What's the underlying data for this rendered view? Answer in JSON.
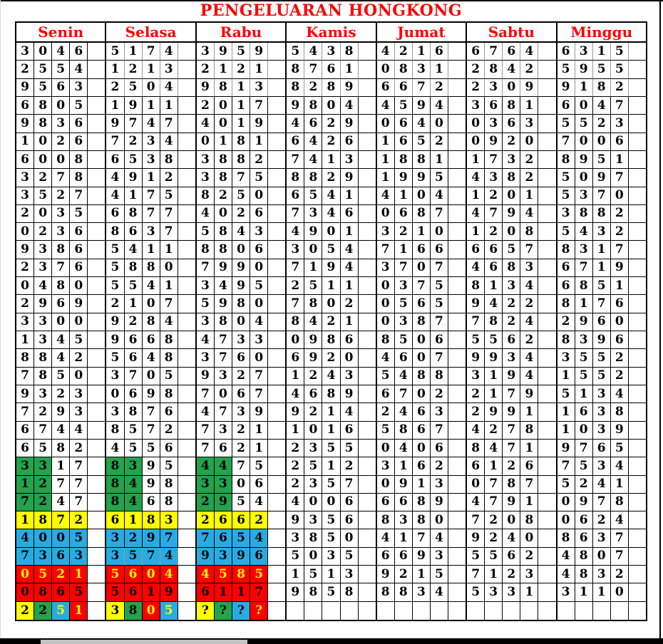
{
  "title": "PENGELUARAN HONGKONG",
  "colors": {
    "title_red": "#FF0000",
    "header_red": "#FF0000",
    "green": "#22A34C",
    "yellow": "#FFFF00",
    "blue": "#29ABE2",
    "red": "#FE0000",
    "gray_border": "#989898"
  },
  "days": [
    {
      "label": "Senin",
      "rows": [
        "3046",
        "2554",
        "9563",
        "6805",
        "9836",
        "1026",
        "6008",
        "3278",
        "3527",
        "2035",
        "0236",
        "9386",
        "2376",
        "0480",
        "2969",
        "3300",
        "1345",
        "8842",
        "7850",
        "9323",
        "7293",
        "6744",
        "6582",
        {
          "d": "3317",
          "bg": "GGWW"
        },
        {
          "d": "1277",
          "bg": "GGWW"
        },
        {
          "d": "7247",
          "bg": "GGWW"
        },
        {
          "d": "1872",
          "bg": "YYYY"
        },
        {
          "d": "4005",
          "bg": "BBBB"
        },
        {
          "d": "7363",
          "bg": "BBBB"
        },
        {
          "d": "0521",
          "bg": "RRRR",
          "fg": "YYYY"
        },
        {
          "d": "0865",
          "bg": "RRRR",
          "fg": "KKKK"
        },
        {
          "d": "2251",
          "bg": "YGBR",
          "fg": "KKYY"
        }
      ]
    },
    {
      "label": "Selasa",
      "rows": [
        {
          "d": "5174",
          "gb": true
        },
        {
          "d": "1213",
          "gb": true
        },
        {
          "d": "2504",
          "gb": true
        },
        "1911",
        "9747",
        "7234",
        "6538",
        "4912",
        "4175",
        "6877",
        "8637",
        "5411",
        "5880",
        "5541",
        "2107",
        "9284",
        "9668",
        "5648",
        "3705",
        "0698",
        "3876",
        "8572",
        "4556",
        {
          "d": "8395",
          "bg": "GGWW"
        },
        {
          "d": "8498",
          "bg": "GGWW"
        },
        {
          "d": "8468",
          "bg": "GGWW"
        },
        {
          "d": "6183",
          "bg": "YYYY"
        },
        {
          "d": "3297",
          "bg": "BBBB"
        },
        {
          "d": "3574",
          "bg": "BBBB",
          "gb": true
        },
        {
          "d": "5604",
          "bg": "RRRR",
          "fg": "YYYY"
        },
        {
          "d": "5619",
          "bg": "RRRR",
          "fg": "KKKK"
        },
        {
          "d": "3805",
          "bg": "YGRB",
          "fg": "KKYY"
        }
      ]
    },
    {
      "label": "Rabu",
      "rows": [
        {
          "d": "3959",
          "gb": true
        },
        {
          "d": "2121",
          "gb": true
        },
        {
          "d": "9813",
          "gb": true
        },
        "2017",
        "4019",
        "0181",
        "3882",
        "3875",
        "8250",
        "4026",
        "5843",
        "8806",
        "7990",
        "3495",
        "5980",
        "3804",
        "4733",
        "3760",
        "9327",
        "7067",
        "4739",
        "7321",
        "7621",
        {
          "d": "4475",
          "bg": "GGWW"
        },
        {
          "d": "3306",
          "bg": "GGWW"
        },
        {
          "d": "2954",
          "bg": "GGWW"
        },
        {
          "d": "2662",
          "bg": "YYYY"
        },
        {
          "d": "7654",
          "bg": "BBBB"
        },
        {
          "d": "9396",
          "bg": "BBBB"
        },
        {
          "d": "4585",
          "bg": "RRRR",
          "fg": "YYYY"
        },
        {
          "d": "6117",
          "bg": "RRRR",
          "fg": "KKKK"
        },
        {
          "d": "????",
          "bg": "YGBR",
          "fg": "KKKY"
        }
      ]
    },
    {
      "label": "Kamis",
      "rows": [
        {
          "d": "5438",
          "gb": true
        },
        {
          "d": "8761",
          "gb": true
        },
        {
          "d": "8289",
          "gb": true
        },
        "9804",
        "4629",
        "6426",
        "7413",
        "8829",
        "6541",
        "7346",
        "4901",
        "3054",
        "7194",
        "2511",
        "7802",
        "8421",
        "0986",
        "6920",
        "1243",
        "4689",
        "9214",
        "1016",
        "2355",
        "2512",
        "2357",
        "4006",
        "9356",
        "3850",
        "5035",
        "1513",
        "9858",
        ""
      ]
    },
    {
      "label": "Jumat",
      "rows": [
        {
          "d": "4216",
          "gb": true
        },
        {
          "d": "0831",
          "gb": true
        },
        {
          "d": "6672",
          "gb": true
        },
        "4594",
        "0640",
        "1652",
        "1881",
        "1995",
        "4104",
        "0687",
        "3210",
        "7166",
        "3707",
        "0375",
        "0565",
        "0387",
        "8506",
        "4607",
        "5488",
        "6702",
        "2463",
        "5867",
        "0406",
        "3162",
        "0913",
        "6689",
        "8380",
        "4174",
        "6693",
        "9215",
        "8834",
        ""
      ]
    },
    {
      "label": "Sabtu",
      "rows": [
        {
          "d": "6764",
          "gb": true
        },
        {
          "d": "2842",
          "gb": true
        },
        {
          "d": "2309",
          "gb": true
        },
        "3681",
        "0363",
        "0920",
        "1732",
        "4382",
        "1201",
        "4794",
        "1208",
        "6657",
        "4683",
        "8134",
        "9422",
        "7824",
        "5562",
        "9934",
        "3194",
        "2179",
        "2991",
        "4278",
        "8471",
        "6126",
        "0787",
        "4791",
        "7208",
        "9240",
        "5562",
        "7123",
        "5331",
        ""
      ]
    },
    {
      "label": "Minggu",
      "rows": [
        {
          "d": "6315",
          "gb": true
        },
        {
          "d": "5955",
          "gb": true
        },
        {
          "d": "9182",
          "gb": true
        },
        "6047",
        "5523",
        "7006",
        "8951",
        "5097",
        "5370",
        "3882",
        "5432",
        "8317",
        "6719",
        "6851",
        "8176",
        "2960",
        "8396",
        "3552",
        "1552",
        "5134",
        "1638",
        "1039",
        "9765",
        "7534",
        "5241",
        "0978",
        "0624",
        "8637",
        "4807",
        "4832",
        "3110",
        ""
      ]
    }
  ]
}
